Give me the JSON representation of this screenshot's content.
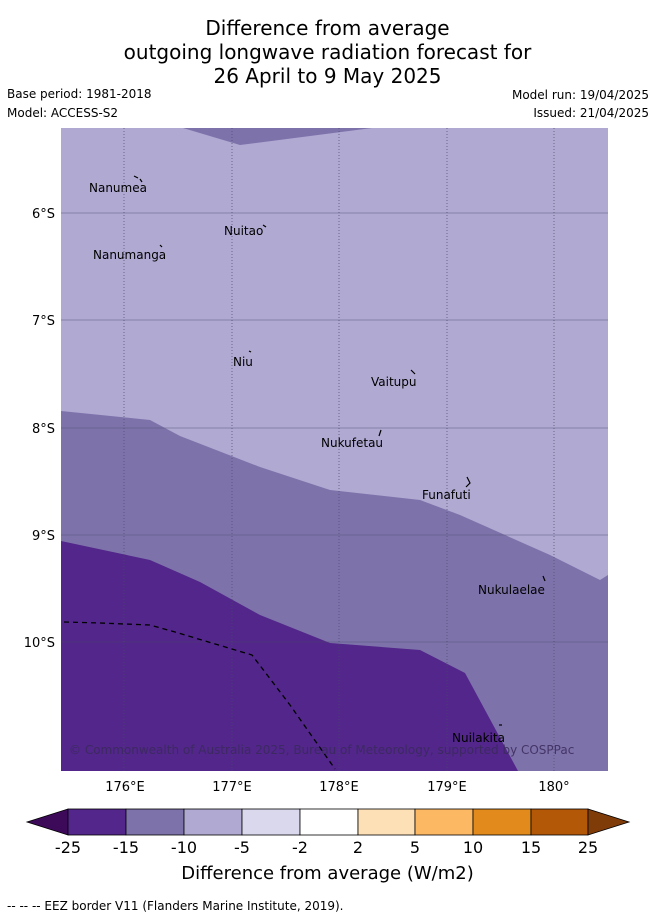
{
  "title": {
    "line1": "Difference from average",
    "line2": "outgoing longwave radiation forecast for",
    "line3": "26 April to 9 May 2025"
  },
  "meta": {
    "base_period": "Base period: 1981-2018",
    "model": "Model: ACCESS-S2",
    "model_run": "Model run: 19/04/2025",
    "issued": "Issued: 21/04/2025"
  },
  "map": {
    "lat_labels": [
      "6°S",
      "7°S",
      "8°S",
      "9°S",
      "10°S"
    ],
    "lon_labels": [
      "176°E",
      "177°E",
      "178°E",
      "179°E",
      "180°"
    ],
    "islands": [
      {
        "name": "Nanumea"
      },
      {
        "name": "Nuitao"
      },
      {
        "name": "Nanumanga"
      },
      {
        "name": "Niu"
      },
      {
        "name": "Vaitupu"
      },
      {
        "name": "Nukufetau"
      },
      {
        "name": "Funafuti"
      },
      {
        "name": "Nukulaelae"
      },
      {
        "name": "Nuilakita"
      }
    ],
    "copyright": "© Commonwealth of Australia 2025, Bureau of Meteorology, supported by COSPPac",
    "colors": {
      "m25": "#3d0a5a",
      "m15": "#52268a",
      "m10": "#7e72ab",
      "m5": "#b0a9d1",
      "m2": "#d9d8ec",
      "zero": "#ffffff",
      "p2": "#fde0b6",
      "p5": "#fdb863",
      "p10": "#e28a1c",
      "p15": "#b35806",
      "p25": "#7f3b08"
    }
  },
  "colorbar": {
    "ticks": [
      "-25",
      "-15",
      "-10",
      "-5",
      "-2",
      "2",
      "5",
      "10",
      "15",
      "25"
    ],
    "label": "Difference from average (W/m2)"
  },
  "footer": {
    "legend": "--  --  -- EEZ border V11 (Flanders Marine Institute, 2019)."
  }
}
